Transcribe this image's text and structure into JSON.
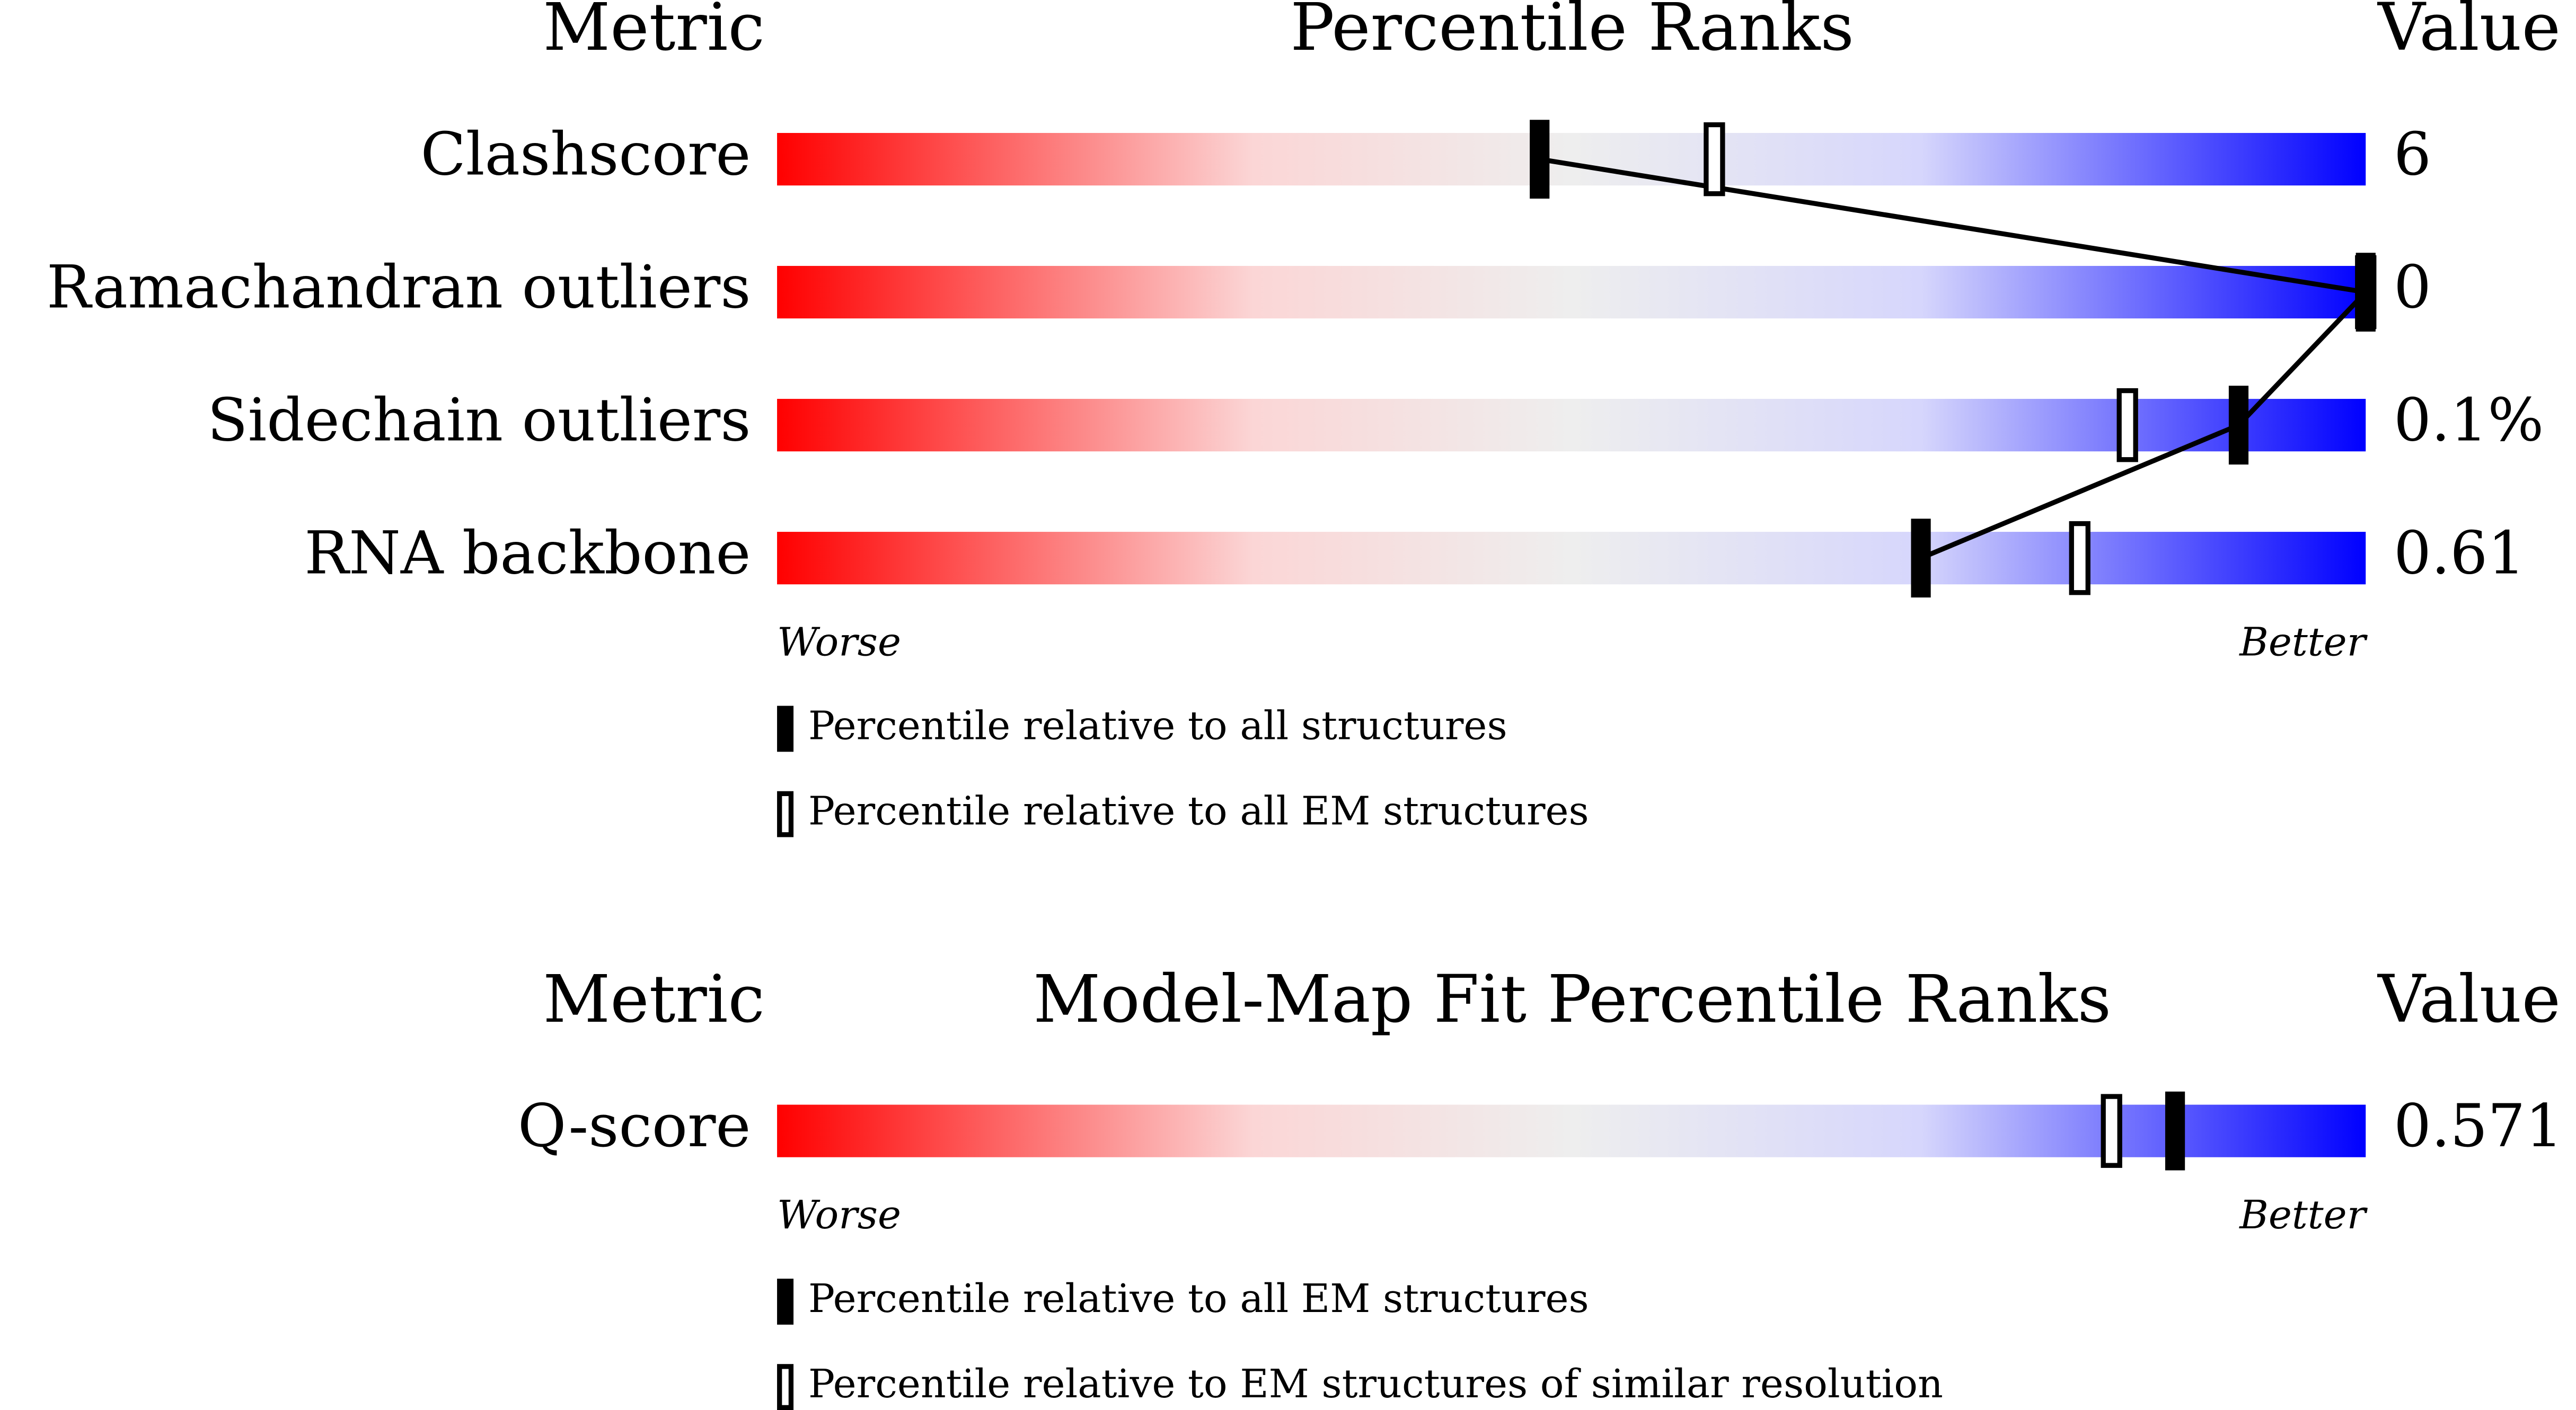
{
  "chart_data": [
    {
      "type": "percentile-slider",
      "metric_header": "Metric",
      "title": "Percentile Ranks",
      "value_header": "Value",
      "categories": [
        "Clashscore",
        "Ramachandran outliers",
        "Sidechain outliers",
        "RNA backbone"
      ],
      "metric_values": [
        "6",
        "0",
        "0.1%",
        "0.61"
      ],
      "series": [
        {
          "name": "Percentile relative to all structures",
          "color": "#000000",
          "values": [
            48,
            100,
            92,
            72
          ]
        },
        {
          "name": "Percentile relative to all EM structures",
          "color": "#000000",
          "values": [
            59,
            100,
            85,
            82
          ]
        }
      ],
      "xlim": [
        0,
        100
      ],
      "left_label": "Worse",
      "right_label": "Better"
    },
    {
      "type": "percentile-slider",
      "metric_header": "Metric",
      "title": "Model-Map Fit Percentile Ranks",
      "value_header": "Value",
      "categories": [
        "Q-score"
      ],
      "metric_values": [
        "0.571"
      ],
      "series": [
        {
          "name": "Percentile relative to all EM structures",
          "color": "#000000",
          "values": [
            88
          ]
        },
        {
          "name": "Percentile relative to EM structures of similar resolution",
          "color": "#000000",
          "values": [
            84
          ]
        }
      ],
      "xlim": [
        0,
        100
      ],
      "left_label": "Worse",
      "right_label": "Better"
    }
  ]
}
